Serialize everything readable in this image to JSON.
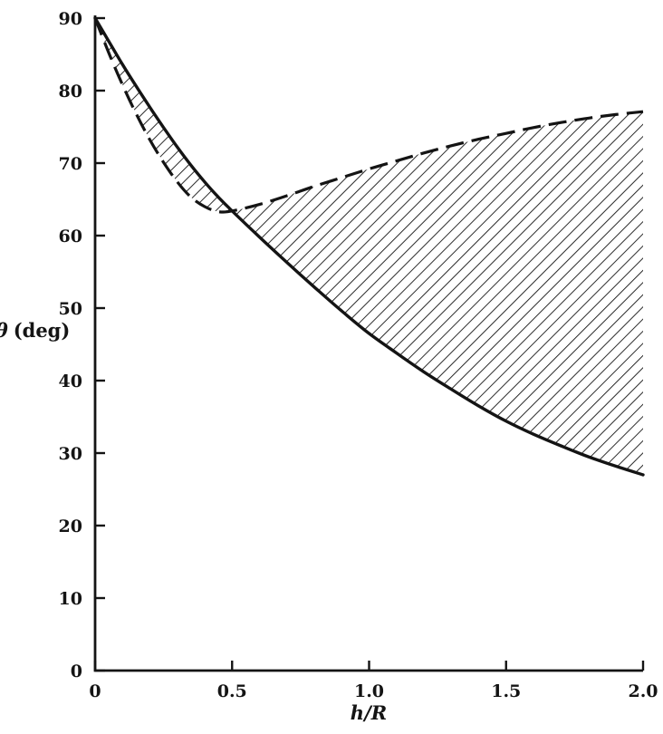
{
  "colors": {
    "background": "#ffffff",
    "ink": "#141414"
  },
  "chart_data": {
    "type": "line",
    "title": "",
    "xlabel": "h/R",
    "ylabel": {
      "symbol": "θ",
      "unit": "(deg)",
      "full": "θ (deg)"
    },
    "xlim": [
      0,
      2.0
    ],
    "ylim": [
      0,
      90
    ],
    "grid": false,
    "legend": false,
    "x_ticks": [
      {
        "value": 0,
        "label": "0"
      },
      {
        "value": 0.5,
        "label": "0.5"
      },
      {
        "value": 1.0,
        "label": "1.0"
      },
      {
        "value": 1.5,
        "label": "1.5"
      },
      {
        "value": 2.0,
        "label": "2.0"
      }
    ],
    "y_ticks": [
      {
        "value": 0,
        "label": "0"
      },
      {
        "value": 10,
        "label": "10"
      },
      {
        "value": 20,
        "label": "20"
      },
      {
        "value": 30,
        "label": "30"
      },
      {
        "value": 40,
        "label": "40"
      },
      {
        "value": 50,
        "label": "50"
      },
      {
        "value": 60,
        "label": "60"
      },
      {
        "value": 70,
        "label": "70"
      },
      {
        "value": 80,
        "label": "80"
      },
      {
        "value": 90,
        "label": "90"
      }
    ],
    "series": [
      {
        "name": "solid-lower-curve",
        "style": "solid",
        "x": [
          0,
          0.05,
          0.1,
          0.15,
          0.2,
          0.25,
          0.3,
          0.35,
          0.4,
          0.45,
          0.5,
          0.6,
          0.7,
          0.8,
          0.9,
          1.0,
          1.1,
          1.2,
          1.3,
          1.4,
          1.5,
          1.6,
          1.7,
          1.8,
          1.9,
          2.0
        ],
        "y": [
          90,
          86.8,
          83.6,
          80.6,
          77.7,
          74.9,
          72.2,
          69.7,
          67.4,
          65.3,
          63.4,
          59.8,
          56.3,
          52.9,
          49.6,
          46.5,
          43.8,
          41.2,
          38.8,
          36.5,
          34.4,
          32.6,
          31.0,
          29.5,
          28.2,
          27.0
        ]
      },
      {
        "name": "dashed-upper-curve",
        "style": "dashed",
        "x": [
          0,
          0.05,
          0.1,
          0.15,
          0.2,
          0.25,
          0.3,
          0.35,
          0.4,
          0.45,
          0.5,
          0.6,
          0.7,
          0.8,
          0.9,
          1.0,
          1.1,
          1.2,
          1.3,
          1.4,
          1.5,
          1.6,
          1.7,
          1.8,
          1.9,
          2.0
        ],
        "y": [
          90,
          85.2,
          80.8,
          76.8,
          73.2,
          70.1,
          67.4,
          65.3,
          64.0,
          63.3,
          63.4,
          64.3,
          65.5,
          66.8,
          68.0,
          69.2,
          70.3,
          71.4,
          72.4,
          73.3,
          74.1,
          74.9,
          75.6,
          76.2,
          76.7,
          77.1
        ]
      }
    ],
    "shaded_region": {
      "between": [
        "solid-lower-curve",
        "dashed-upper-curve"
      ],
      "fill": "diagonal-hatch",
      "hatch_direction": "/",
      "hatch_spacing_px": 9.5
    }
  }
}
